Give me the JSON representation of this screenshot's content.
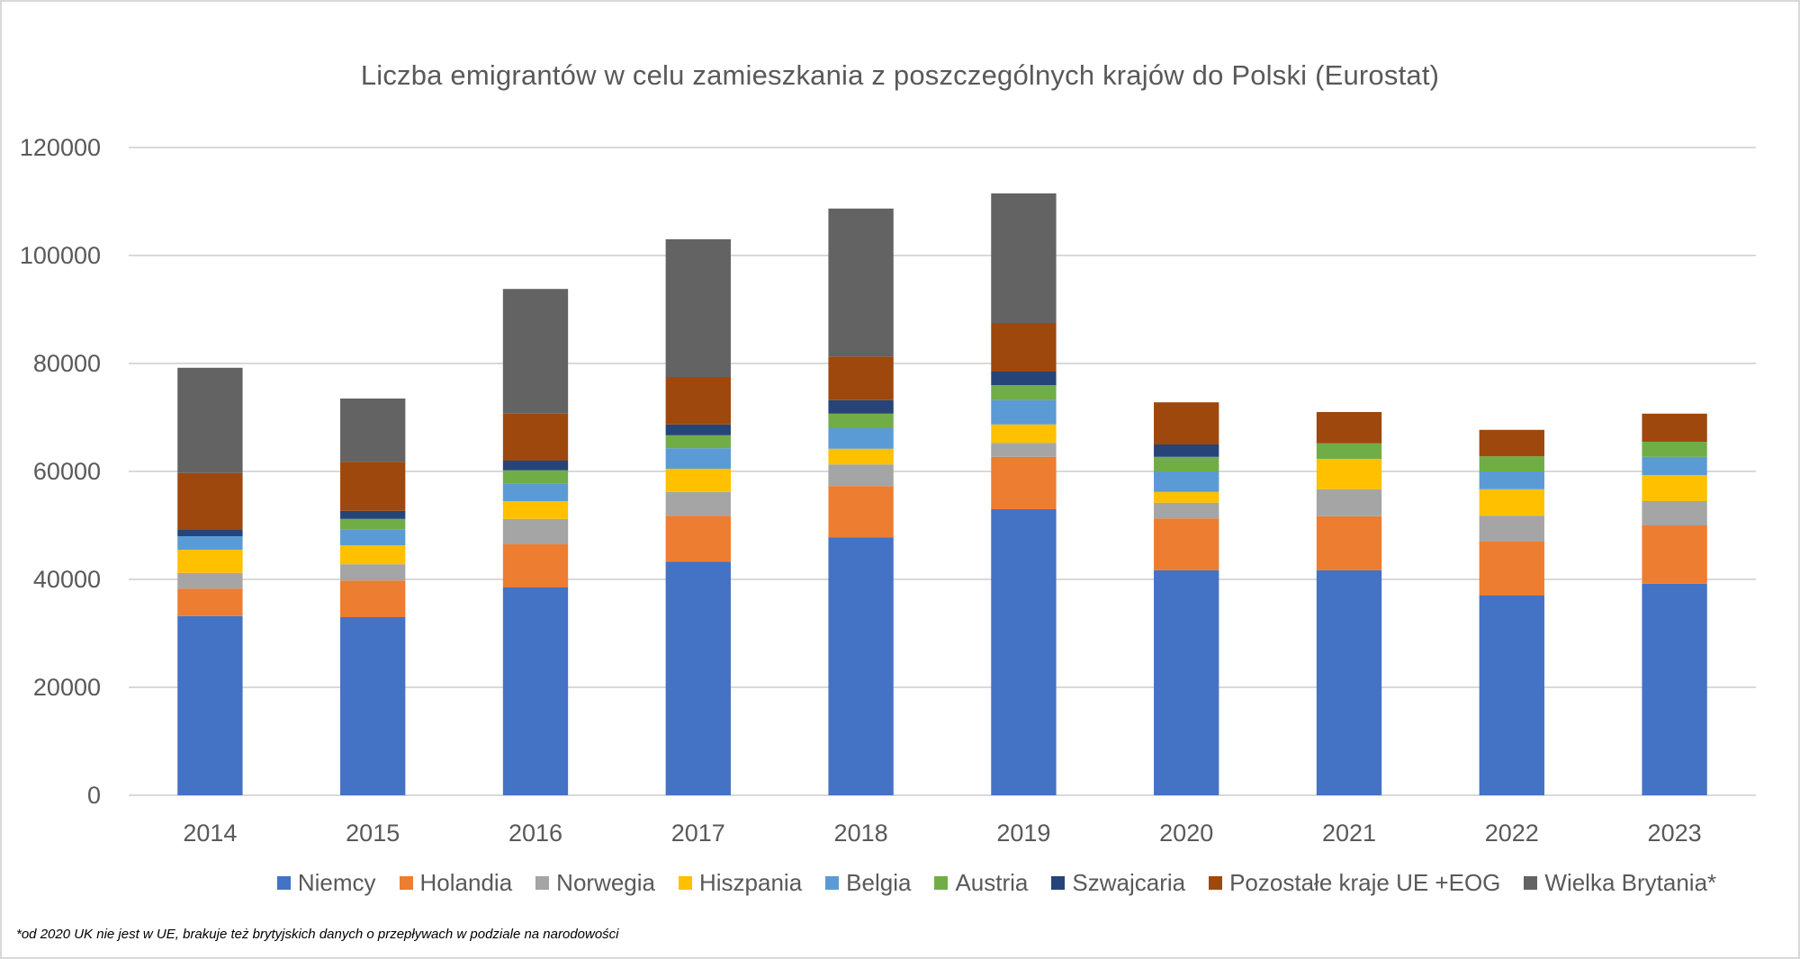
{
  "chart_data": {
    "type": "bar",
    "stacked": true,
    "title": "Liczba emigrantów w celu zamieszkania z poszczególnych krajów do Polski (Eurostat)",
    "xlabel": "",
    "ylabel": "",
    "ylim": [
      0,
      120000
    ],
    "yticks": [
      0,
      20000,
      40000,
      60000,
      80000,
      100000,
      120000
    ],
    "ytick_labels": [
      "0",
      "20000",
      "40000",
      "60000",
      "80000",
      "100000",
      "120000"
    ],
    "grid": true,
    "legend_position": "bottom",
    "categories": [
      "2014",
      "2015",
      "2016",
      "2017",
      "2018",
      "2019",
      "2020",
      "2021",
      "2022",
      "2023"
    ],
    "series": [
      {
        "name": "Niemcy",
        "color": "#4472c4",
        "values": [
          33200,
          33000,
          38500,
          43300,
          47800,
          53000,
          41700,
          41700,
          37000,
          39200
        ]
      },
      {
        "name": "Holandia",
        "color": "#ed7d31",
        "values": [
          5100,
          6800,
          8000,
          8500,
          9500,
          9700,
          9600,
          10000,
          10000,
          10800
        ]
      },
      {
        "name": "Norwegia",
        "color": "#a5a5a5",
        "values": [
          2900,
          3000,
          4700,
          4400,
          4000,
          2600,
          2900,
          5000,
          4800,
          4500
        ]
      },
      {
        "name": "Hiszpania",
        "color": "#ffc000",
        "values": [
          4300,
          3500,
          3300,
          4300,
          2900,
          3400,
          2000,
          5600,
          4900,
          4800
        ]
      },
      {
        "name": "Belgia",
        "color": "#5b9bd5",
        "values": [
          2500,
          2900,
          3300,
          3800,
          3800,
          4500,
          3800,
          0,
          3300,
          3400
        ]
      },
      {
        "name": "Austria",
        "color": "#70ad47",
        "values": [
          0,
          2000,
          2400,
          2400,
          2700,
          2800,
          2700,
          2900,
          2800,
          2800
        ]
      },
      {
        "name": "Szwajcaria",
        "color": "#264478",
        "values": [
          1300,
          1500,
          1800,
          2000,
          2500,
          2500,
          2300,
          0,
          0,
          0
        ]
      },
      {
        "name": "Pozostałe kraje UE +EOG",
        "color": "#9e480e",
        "values": [
          10400,
          9100,
          8700,
          8800,
          8100,
          9000,
          7800,
          5800,
          4900,
          5200
        ]
      },
      {
        "name": "Wielka Brytania*",
        "color": "#636363",
        "values": [
          19500,
          11700,
          23100,
          25500,
          27400,
          24000,
          0,
          0,
          0,
          0
        ]
      }
    ],
    "footnote": "*od 2020 UK nie jest w UE, brakuje też brytyjskich danych o przepływach w podziale na narodowości"
  }
}
